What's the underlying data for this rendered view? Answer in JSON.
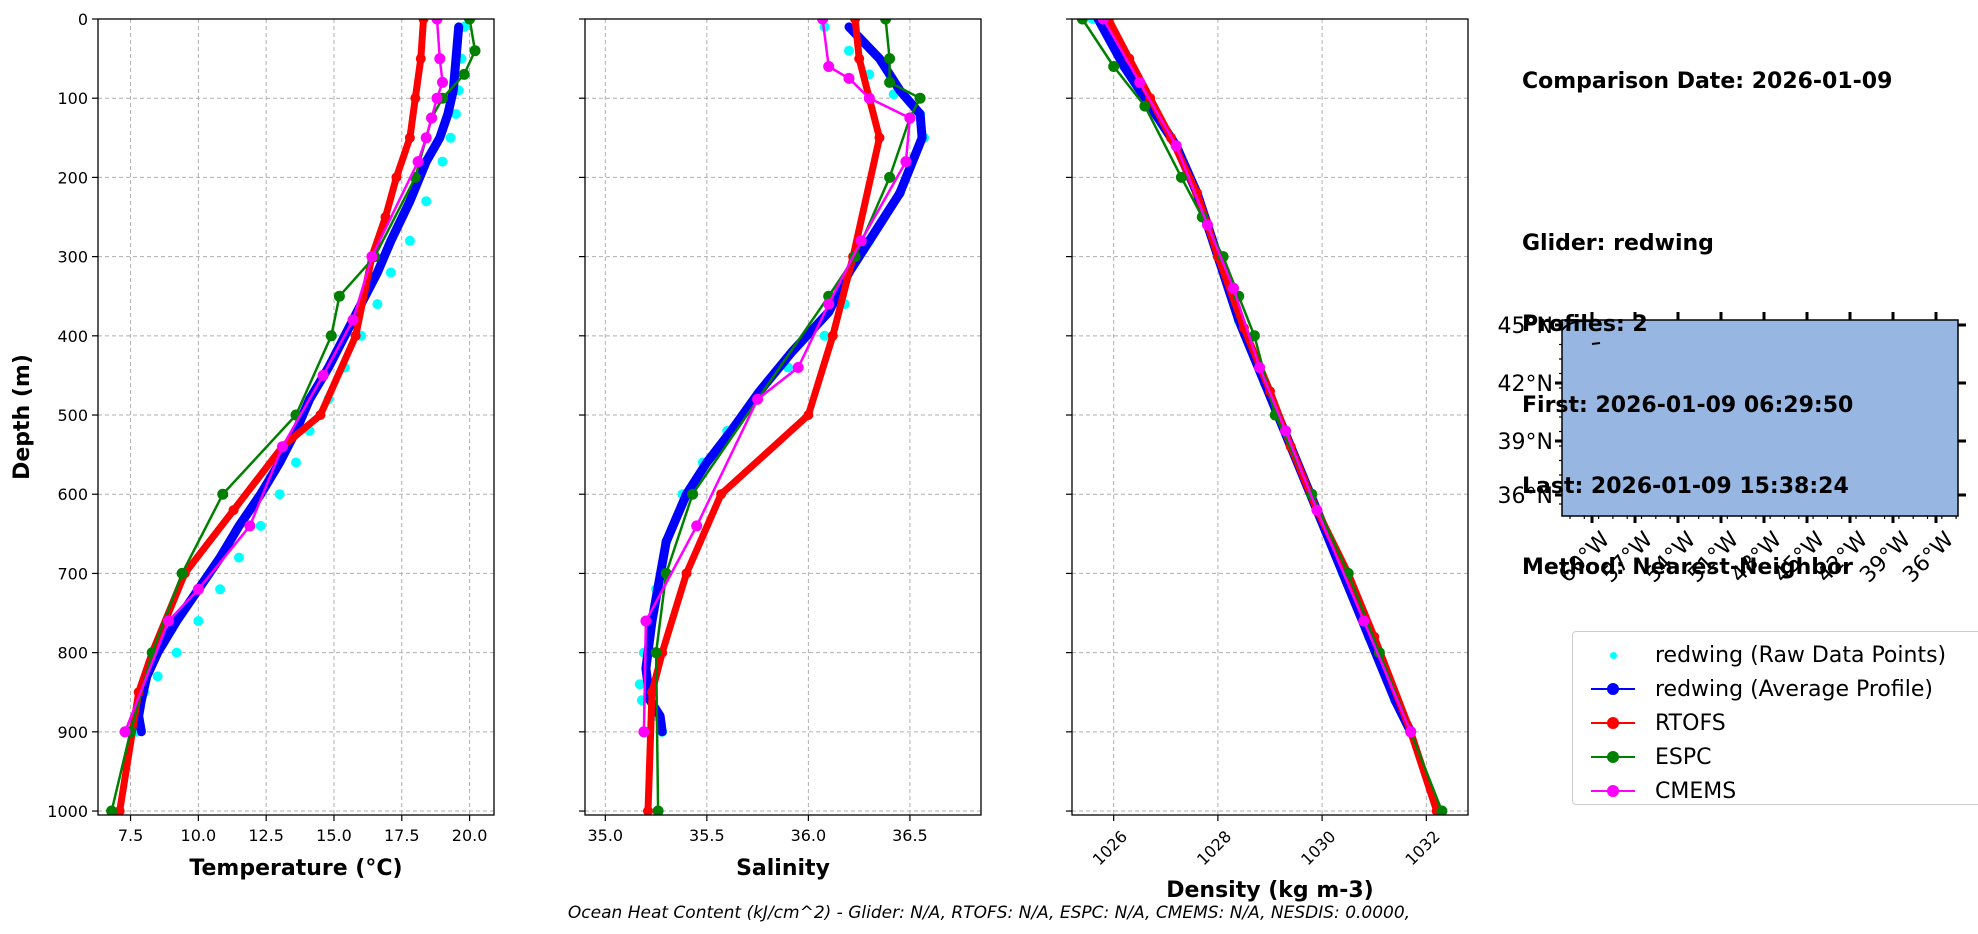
{
  "info": {
    "lines": [
      "Comparison Date: 2026-01-09",
      "",
      "Glider: redwing",
      "Profiles: 2",
      "First: 2026-01-09 06:29:50",
      "Last: 2026-01-09 15:38:24",
      "Method: Nearest-Neighbor"
    ]
  },
  "footer": "Ocean Heat Content (kJ/cm^2) - Glider: N/A,  RTOFS: N/A,  ESPC: N/A,  CMEMS: N/A,  NESDIS: 0.0000,",
  "colors": {
    "raw": "#00ffff",
    "avg": "#0000ff",
    "rtofs": "#ff0000",
    "espc": "#008000",
    "cmems": "#ff00ff",
    "ocean": "#97b6e1",
    "grid": "#b0b0b0"
  },
  "legend": {
    "entries": [
      {
        "label": "redwing (Raw Data Points)",
        "series": "raw"
      },
      {
        "label": "redwing (Average Profile)",
        "series": "avg"
      },
      {
        "label": "RTOFS",
        "series": "rtofs"
      },
      {
        "label": "ESPC",
        "series": "espc"
      },
      {
        "label": "CMEMS",
        "series": "cmems"
      }
    ]
  },
  "chart_data": [
    {
      "type": "line",
      "title": "",
      "xlabel": "Temperature (°C)",
      "ylabel": "Depth (m)",
      "xlim": [
        6.3,
        20.9
      ],
      "ylim": [
        1005,
        0
      ],
      "y_inverted": true,
      "grid": true,
      "xticks": [
        7.5,
        10.0,
        12.5,
        15.0,
        17.5,
        20.0
      ],
      "xtick_labels": [
        "7.5",
        "10.0",
        "12.5",
        "15.0",
        "17.5",
        "20.0"
      ],
      "yticks": [
        0,
        100,
        200,
        300,
        400,
        500,
        600,
        700,
        800,
        900,
        1000
      ],
      "ytick_labels": [
        "0",
        "100",
        "200",
        "300",
        "400",
        "500",
        "600",
        "700",
        "800",
        "900",
        "1000"
      ],
      "series": [
        {
          "name": "redwing (Raw Data Points)",
          "key": "raw",
          "x": [
            19.8,
            19.7,
            19.6,
            19.5,
            19.3,
            19.0,
            18.4,
            17.8,
            17.1,
            16.6,
            16.0,
            15.4,
            14.8,
            14.1,
            13.6,
            13.0,
            12.3,
            11.5,
            10.8,
            10.0,
            9.2,
            8.5,
            8.0,
            7.8,
            7.6,
            7.7
          ],
          "y": [
            10,
            50,
            90,
            120,
            150,
            180,
            230,
            280,
            320,
            360,
            400,
            440,
            480,
            520,
            560,
            600,
            640,
            680,
            720,
            760,
            800,
            830,
            850,
            870,
            890,
            900
          ]
        },
        {
          "name": "redwing (Average Profile)",
          "key": "avg",
          "x": [
            19.6,
            19.5,
            19.4,
            19.2,
            18.9,
            18.4,
            17.8,
            17.1,
            16.6,
            16.0,
            15.4,
            14.8,
            14.1,
            13.6,
            13.0,
            12.3,
            11.5,
            10.8,
            10.0,
            9.2,
            8.5,
            8.1,
            7.9,
            7.8,
            7.9
          ],
          "y": [
            10,
            50,
            90,
            120,
            150,
            180,
            230,
            280,
            320,
            360,
            400,
            440,
            480,
            520,
            560,
            600,
            640,
            680,
            720,
            760,
            800,
            830,
            860,
            880,
            900
          ]
        },
        {
          "name": "RTOFS",
          "key": "rtofs",
          "x": [
            18.3,
            18.2,
            18.0,
            17.8,
            17.3,
            16.9,
            16.4,
            15.8,
            14.5,
            13.1,
            11.3,
            9.5,
            8.3,
            7.8,
            7.1
          ],
          "y": [
            0,
            50,
            100,
            150,
            200,
            250,
            300,
            400,
            500,
            540,
            620,
            700,
            800,
            850,
            1000
          ]
        },
        {
          "name": "ESPC",
          "key": "espc",
          "x": [
            20.0,
            20.2,
            19.8,
            19.0,
            18.6,
            18.0,
            16.5,
            15.2,
            14.9,
            13.6,
            10.9,
            9.4,
            8.3,
            7.5,
            6.8
          ],
          "y": [
            0,
            40,
            70,
            100,
            125,
            200,
            300,
            350,
            400,
            500,
            600,
            700,
            800,
            900,
            1000
          ]
        },
        {
          "name": "CMEMS",
          "key": "cmems",
          "x": [
            18.8,
            18.9,
            19.0,
            18.8,
            18.6,
            18.4,
            18.1,
            16.4,
            15.7,
            14.6,
            13.1,
            11.9,
            10.0,
            8.9,
            7.3
          ],
          "y": [
            0,
            50,
            80,
            100,
            125,
            150,
            180,
            300,
            380,
            450,
            540,
            640,
            720,
            760,
            900
          ]
        }
      ]
    },
    {
      "type": "line",
      "title": "",
      "xlabel": "Salinity",
      "ylabel": "",
      "xlim": [
        34.9,
        36.85
      ],
      "ylim": [
        1005,
        0
      ],
      "y_inverted": true,
      "grid": true,
      "xticks": [
        35.0,
        35.5,
        36.0,
        36.5
      ],
      "xtick_labels": [
        "35.0",
        "35.5",
        "36.0",
        "36.5"
      ],
      "yticks": [
        0,
        100,
        200,
        300,
        400,
        500,
        600,
        700,
        800,
        900,
        1000
      ],
      "series": [
        {
          "name": "redwing (Raw Data Points)",
          "key": "raw",
          "x": [
            36.08,
            36.2,
            36.3,
            36.42,
            36.55,
            36.57,
            36.45,
            36.3,
            36.2,
            36.18,
            36.08,
            35.9,
            35.75,
            35.6,
            35.48,
            35.38,
            35.3,
            35.25,
            35.19,
            35.17,
            35.18,
            35.25,
            35.28
          ],
          "y": [
            10,
            40,
            70,
            95,
            120,
            150,
            220,
            280,
            320,
            360,
            400,
            440,
            480,
            520,
            560,
            600,
            660,
            720,
            800,
            840,
            860,
            880,
            900
          ]
        },
        {
          "name": "redwing (Average Profile)",
          "key": "avg",
          "x": [
            36.2,
            36.35,
            36.45,
            36.55,
            36.56,
            36.45,
            36.3,
            36.2,
            36.1,
            35.92,
            35.76,
            35.62,
            35.5,
            35.4,
            35.3,
            35.23,
            35.2,
            35.22,
            35.27,
            35.28
          ],
          "y": [
            10,
            50,
            90,
            120,
            150,
            220,
            280,
            320,
            370,
            420,
            470,
            520,
            560,
            600,
            660,
            760,
            820,
            860,
            880,
            900
          ]
        },
        {
          "name": "RTOFS",
          "key": "rtofs",
          "x": [
            36.23,
            36.25,
            36.3,
            36.35,
            36.22,
            36.12,
            36.0,
            35.57,
            35.4,
            35.28,
            35.23,
            35.21
          ],
          "y": [
            0,
            50,
            100,
            150,
            300,
            400,
            500,
            600,
            700,
            800,
            850,
            1000
          ]
        },
        {
          "name": "ESPC",
          "key": "espc",
          "x": [
            36.38,
            36.4,
            36.4,
            36.55,
            36.5,
            36.4,
            36.23,
            36.1,
            35.43,
            35.3,
            35.25,
            35.26
          ],
          "y": [
            0,
            50,
            80,
            100,
            125,
            200,
            300,
            350,
            600,
            700,
            800,
            1000
          ]
        },
        {
          "name": "CMEMS",
          "key": "cmems",
          "x": [
            36.07,
            36.1,
            36.2,
            36.3,
            36.5,
            36.48,
            36.26,
            36.1,
            35.95,
            35.75,
            35.45,
            35.2,
            35.19
          ],
          "y": [
            0,
            60,
            75,
            100,
            125,
            180,
            280,
            360,
            440,
            480,
            640,
            760,
            900
          ]
        }
      ]
    },
    {
      "type": "line",
      "title": "",
      "xlabel": "Density (kg m-3)",
      "ylabel": "",
      "xlim": [
        1025.2,
        1032.8
      ],
      "ylim": [
        1005,
        0
      ],
      "y_inverted": true,
      "grid": true,
      "xticks": [
        1026,
        1028,
        1030,
        1032
      ],
      "xtick_labels": [
        "1026",
        "1028",
        "1030",
        "1032"
      ],
      "yticks": [
        0,
        100,
        200,
        300,
        400,
        500,
        600,
        700,
        800,
        900,
        1000
      ],
      "series": [
        {
          "name": "redwing (Raw Data Points)",
          "key": "raw",
          "x": [
            1025.6,
            1026.2,
            1026.7,
            1027.2,
            1027.6,
            1028.0,
            1028.4,
            1028.9,
            1029.4,
            1029.9,
            1030.4,
            1030.9,
            1031.4,
            1031.7
          ],
          "y": [
            0,
            60,
            110,
            160,
            220,
            300,
            380,
            460,
            540,
            620,
            700,
            780,
            860,
            900
          ]
        },
        {
          "name": "redwing (Average Profile)",
          "key": "avg",
          "x": [
            1025.7,
            1026.2,
            1026.7,
            1027.2,
            1027.6,
            1028.0,
            1028.4,
            1028.9,
            1029.4,
            1029.9,
            1030.4,
            1030.9,
            1031.4,
            1031.7
          ],
          "y": [
            0,
            60,
            110,
            160,
            220,
            300,
            380,
            460,
            540,
            620,
            700,
            780,
            860,
            900
          ]
        },
        {
          "name": "RTOFS",
          "key": "rtofs",
          "x": [
            1025.9,
            1026.3,
            1026.7,
            1027.1,
            1027.6,
            1028.0,
            1028.5,
            1029.0,
            1029.4,
            1029.9,
            1030.5,
            1031.0,
            1031.7,
            1032.2
          ],
          "y": [
            0,
            50,
            100,
            150,
            220,
            300,
            390,
            470,
            540,
            620,
            700,
            780,
            900,
            1000
          ]
        },
        {
          "name": "ESPC",
          "key": "espc",
          "x": [
            1025.4,
            1026.0,
            1026.6,
            1027.3,
            1027.7,
            1028.1,
            1028.4,
            1028.7,
            1029.1,
            1029.8,
            1030.5,
            1031.1,
            1031.7,
            1032.3
          ],
          "y": [
            0,
            60,
            110,
            200,
            250,
            300,
            350,
            400,
            500,
            600,
            700,
            800,
            900,
            1000
          ]
        },
        {
          "name": "CMEMS",
          "key": "cmems",
          "x": [
            1025.8,
            1026.5,
            1027.2,
            1027.8,
            1028.3,
            1028.8,
            1029.3,
            1029.9,
            1030.8,
            1031.7
          ],
          "y": [
            0,
            80,
            160,
            260,
            340,
            440,
            520,
            620,
            760,
            900
          ]
        }
      ]
    }
  ],
  "map": {
    "lat_labels": [
      "45°N",
      "42°N",
      "39°N",
      "36°N"
    ],
    "lon_labels": [
      "60°W",
      "57°W",
      "54°W",
      "51°W",
      "48°W",
      "45°W",
      "42°W",
      "39°W",
      "36°W"
    ]
  }
}
